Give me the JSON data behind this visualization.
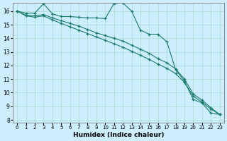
{
  "xlabel": "Humidex (Indice chaleur)",
  "bg_color": "#cceeff",
  "grid_color": "#aaddcc",
  "line_color": "#1a7a6a",
  "xlim": [
    -0.5,
    23.5
  ],
  "ylim": [
    7.8,
    16.6
  ],
  "xticks": [
    0,
    1,
    2,
    3,
    4,
    5,
    6,
    7,
    8,
    9,
    10,
    11,
    12,
    13,
    14,
    15,
    16,
    17,
    18,
    19,
    20,
    21,
    22,
    23
  ],
  "yticks": [
    8,
    9,
    10,
    11,
    12,
    13,
    14,
    15,
    16
  ],
  "line1_x": [
    0,
    1,
    2,
    3,
    4,
    5,
    6,
    7,
    8,
    9,
    10,
    11,
    12,
    13,
    14,
    15,
    16,
    17,
    18,
    19,
    20,
    21,
    22,
    23
  ],
  "line1_y": [
    16.0,
    15.85,
    15.85,
    16.55,
    15.8,
    15.6,
    15.6,
    15.55,
    15.5,
    15.5,
    15.45,
    16.55,
    16.6,
    16.0,
    14.6,
    14.3,
    14.3,
    13.75,
    11.7,
    10.85,
    9.5,
    9.25,
    8.5,
    8.4
  ],
  "line2_x": [
    0,
    1,
    2,
    3,
    4,
    5,
    6,
    7,
    8,
    9,
    10,
    11,
    12,
    13,
    14,
    15,
    16,
    17,
    18,
    19,
    20,
    21,
    22,
    23
  ],
  "line2_y": [
    16.0,
    15.7,
    15.65,
    15.75,
    15.5,
    15.3,
    15.1,
    14.9,
    14.65,
    14.4,
    14.2,
    14.0,
    13.8,
    13.5,
    13.2,
    12.9,
    12.5,
    12.2,
    11.75,
    11.0,
    9.9,
    9.45,
    8.9,
    8.4
  ],
  "line3_x": [
    0,
    1,
    2,
    3,
    4,
    5,
    6,
    7,
    8,
    9,
    10,
    11,
    12,
    13,
    14,
    15,
    16,
    17,
    18,
    19,
    20,
    21,
    22,
    23
  ],
  "line3_y": [
    16.0,
    15.65,
    15.55,
    15.65,
    15.35,
    15.1,
    14.85,
    14.6,
    14.35,
    14.1,
    13.85,
    13.6,
    13.35,
    13.05,
    12.75,
    12.45,
    12.1,
    11.8,
    11.4,
    10.75,
    9.75,
    9.3,
    8.8,
    8.4
  ]
}
